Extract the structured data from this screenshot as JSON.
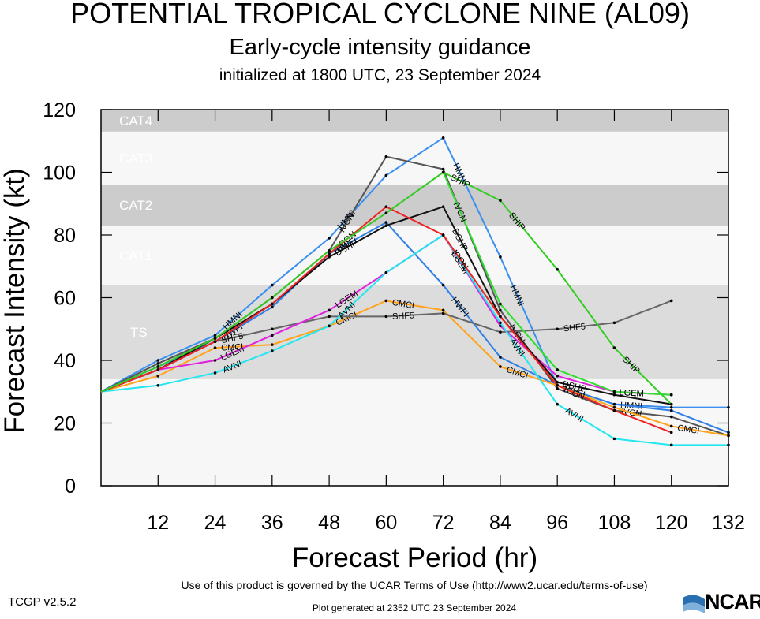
{
  "header": {
    "title": "POTENTIAL TROPICAL CYCLONE NINE (AL09)",
    "subtitle": "Early-cycle intensity guidance",
    "init": "initialized at 1800 UTC, 23 September 2024"
  },
  "footer": {
    "version": "TCGP v2.5.2",
    "terms": "Use of this product is governed by the UCAR Terms of Use (http://www2.ucar.edu/terms-of-use)",
    "generated": "Plot generated at 2352 UTC   23 September 2024",
    "logo": "NCAR"
  },
  "chart_data": {
    "type": "line",
    "title": "POTENTIAL TROPICAL CYCLONE NINE (AL09)",
    "xlabel": "Forecast Period (hr)",
    "ylabel": "Forecast Intensity (kt)",
    "xlim": [
      0,
      132
    ],
    "ylim": [
      0,
      120
    ],
    "xticks": [
      12,
      24,
      36,
      48,
      60,
      72,
      84,
      96,
      108,
      120,
      132
    ],
    "yticks": [
      0,
      20,
      40,
      60,
      80,
      100,
      120
    ],
    "categories": [
      {
        "name": "TS",
        "min": 34,
        "max": 64,
        "color": "#dcdcdc"
      },
      {
        "name": "CAT1",
        "min": 64,
        "max": 83,
        "color": "#f7f7f7"
      },
      {
        "name": "CAT2",
        "min": 83,
        "max": 96,
        "color": "#cccccc"
      },
      {
        "name": "CAT3",
        "min": 96,
        "max": 113,
        "color": "#f7f7f7"
      },
      {
        "name": "CAT4",
        "min": 113,
        "max": 120,
        "color": "#cccccc"
      }
    ],
    "series": [
      {
        "name": "HMNI",
        "color": "#3a8ff0",
        "x": [
          0,
          12,
          24,
          36,
          48,
          60,
          72,
          84,
          96,
          108,
          120,
          132
        ],
        "values": [
          30,
          40,
          48,
          64,
          79,
          99,
          111,
          73,
          32,
          26,
          25,
          25
        ],
        "labels": [
          [
            24,
            "HMNI"
          ],
          [
            48,
            "HMNI"
          ],
          [
            72,
            "HMNI"
          ],
          [
            84,
            "HMNI"
          ],
          [
            108,
            "HMNI"
          ]
        ]
      },
      {
        "name": "IVCN",
        "color": "#555555",
        "x": [
          0,
          12,
          24,
          36,
          48,
          60,
          72,
          84,
          96,
          108,
          120,
          132
        ],
        "values": [
          30,
          39,
          47,
          60,
          75,
          105,
          101,
          56,
          31,
          24,
          22,
          16
        ],
        "labels": [
          [
            48,
            "IVCN"
          ],
          [
            84,
            "IVCN"
          ],
          [
            108,
            "IVCN"
          ]
        ]
      },
      {
        "name": "HWFI",
        "color": "#2e7fe6",
        "x": [
          0,
          12,
          24,
          36,
          48,
          60,
          72,
          84,
          96,
          108,
          120,
          132
        ],
        "values": [
          30,
          38,
          46,
          57,
          74,
          84,
          64,
          41,
          32,
          26,
          24,
          17
        ],
        "labels": [
          [
            24,
            "HWFI"
          ],
          [
            48,
            "HWFI"
          ],
          [
            72,
            "HWFI"
          ],
          [
            96,
            "HWFI"
          ]
        ]
      },
      {
        "name": "CMCI",
        "color": "#ffa319",
        "x": [
          0,
          12,
          24,
          36,
          48,
          60,
          72,
          84,
          96,
          108,
          120,
          132
        ],
        "values": [
          30,
          35,
          44,
          45,
          51,
          59,
          56,
          38,
          32,
          25,
          19,
          16
        ],
        "labels": [
          [
            24,
            "CMCI"
          ],
          [
            48,
            "CMCI"
          ],
          [
            60,
            "CMCI"
          ],
          [
            84,
            "CMCI"
          ],
          [
            120,
            "CMCI"
          ]
        ]
      },
      {
        "name": "SHF5",
        "color": "#666666",
        "x": [
          0,
          12,
          24,
          36,
          48,
          60,
          72,
          84,
          96,
          108,
          120
        ],
        "values": [
          30,
          37,
          46,
          50,
          54,
          54,
          55,
          49,
          50,
          52,
          59
        ],
        "labels": [
          [
            24,
            "SHF5"
          ],
          [
            60,
            "SHF5"
          ],
          [
            96,
            "SHF5"
          ]
        ]
      },
      {
        "name": "LGEM",
        "color": "#e020e0",
        "x": [
          0,
          12,
          24,
          36,
          48,
          60,
          72,
          84,
          96,
          108,
          120
        ],
        "values": [
          30,
          37,
          40,
          48,
          56,
          68,
          80,
          51,
          35,
          30,
          29
        ],
        "labels": [
          [
            24,
            "LGEM"
          ],
          [
            48,
            "LGEM"
          ],
          [
            72,
            "LGEM"
          ],
          [
            108,
            "LGEM"
          ]
        ]
      },
      {
        "name": "AVNI",
        "color": "#22e6f0",
        "x": [
          0,
          12,
          24,
          36,
          48,
          60,
          72,
          84,
          96,
          108,
          120,
          132
        ],
        "values": [
          30,
          32,
          36,
          43,
          51,
          68,
          80,
          52,
          26,
          15,
          13,
          13
        ],
        "labels": [
          [
            24,
            "AVNI"
          ],
          [
            48,
            "AVNI"
          ],
          [
            84,
            "AVNI"
          ],
          [
            96,
            "AVNI"
          ]
        ]
      },
      {
        "name": "DSHP",
        "color": "#111111",
        "x": [
          0,
          12,
          24,
          36,
          48,
          60,
          72,
          84,
          96,
          108,
          120
        ],
        "values": [
          30,
          37,
          47,
          58,
          73,
          83,
          89,
          54,
          33,
          29,
          26
        ],
        "labels": [
          [
            48,
            "DSHP"
          ],
          [
            72,
            "DSHP"
          ],
          [
            96,
            "DSHP"
          ]
        ]
      },
      {
        "name": "ICON",
        "color": "#ee2222",
        "x": [
          0,
          12,
          24,
          36,
          48,
          60,
          72,
          84,
          96,
          108,
          120
        ],
        "values": [
          30,
          37,
          46,
          58,
          74,
          89,
          80,
          54,
          32,
          24,
          17
        ],
        "labels": [
          [
            48,
            "ICON"
          ],
          [
            72,
            "ICON"
          ],
          [
            96,
            "ICON"
          ]
        ]
      },
      {
        "name": "SHIP",
        "color": "#33cc22",
        "x": [
          0,
          12,
          24,
          36,
          48,
          60,
          72,
          84,
          96,
          108,
          120
        ],
        "values": [
          30,
          38,
          47,
          60,
          75,
          87,
          100,
          91,
          69,
          44,
          26
        ],
        "labels": [
          [
            72,
            "SHIP"
          ],
          [
            84,
            "SHIP"
          ],
          [
            108,
            "SHIP"
          ]
        ]
      },
      {
        "name": "IVCN-G",
        "color": "#2ee02e",
        "x": [
          72,
          84,
          96,
          108,
          120
        ],
        "values": [
          100,
          58,
          37,
          30,
          29
        ],
        "labels": [
          [
            72,
            "IVCN"
          ],
          [
            108,
            "LGEM"
          ]
        ]
      }
    ]
  }
}
